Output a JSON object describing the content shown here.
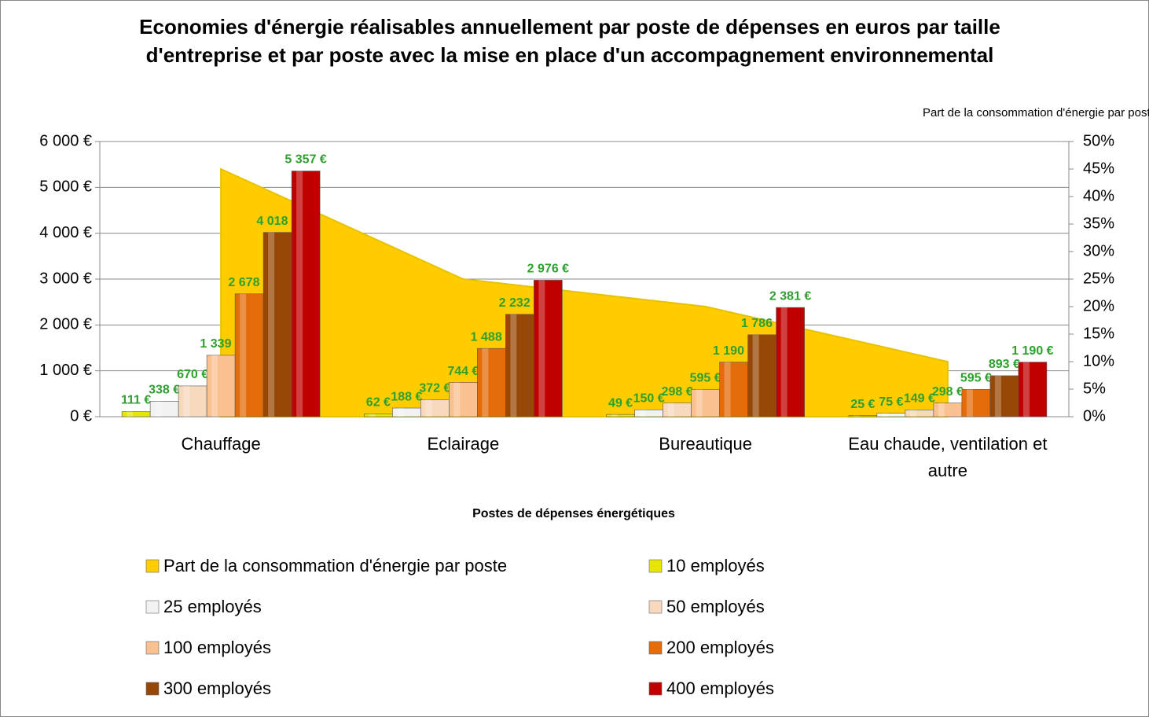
{
  "chart_data": {
    "type": "bar",
    "title": "Economies d'énergie réalisables annuellement par poste de dépenses en euros par taille d'entreprise et par poste avec la mise en place d'un accompagnement environnemental",
    "x_label": "Postes de dépenses énergétiques",
    "y2_label": "Part de la consommation d'énergie par poste",
    "categories": [
      "Chauffage",
      "Eclairage",
      "Bureautique",
      "Eau chaude, ventilation et autre"
    ],
    "ylim": [
      0,
      6000
    ],
    "yticks": [
      {
        "value": 0,
        "label": "0 €"
      },
      {
        "value": 1000,
        "label": "1 000 €"
      },
      {
        "value": 2000,
        "label": "2 000 €"
      },
      {
        "value": 3000,
        "label": "3 000 €"
      },
      {
        "value": 4000,
        "label": "4 000 €"
      },
      {
        "value": 5000,
        "label": "5 000 €"
      },
      {
        "value": 6000,
        "label": "6 000 €"
      }
    ],
    "y2lim": [
      0,
      50
    ],
    "y2ticks": [
      {
        "value": 0,
        "label": "0%"
      },
      {
        "value": 5,
        "label": "5%"
      },
      {
        "value": 10,
        "label": "10%"
      },
      {
        "value": 15,
        "label": "15%"
      },
      {
        "value": 20,
        "label": "20%"
      },
      {
        "value": 25,
        "label": "25%"
      },
      {
        "value": 30,
        "label": "30%"
      },
      {
        "value": 35,
        "label": "35%"
      },
      {
        "value": 40,
        "label": "40%"
      },
      {
        "value": 45,
        "label": "45%"
      },
      {
        "value": 50,
        "label": "50%"
      }
    ],
    "grid": true,
    "legend": "bottom",
    "series": [
      {
        "name": "Part de la consommation d'énergie par poste",
        "type": "area",
        "axis": "y2",
        "color": "#ffcc00",
        "values": [
          45,
          25,
          20,
          10
        ]
      },
      {
        "name": "10 employés",
        "color": "#e6e600",
        "values": [
          111,
          62,
          49,
          25
        ],
        "value_labels": [
          "111 €",
          "62 €",
          "49 €",
          "25 €"
        ]
      },
      {
        "name": "25 employés",
        "color": "#f2f2f2",
        "values": [
          338,
          188,
          150,
          75
        ],
        "value_labels": [
          "338 €",
          "188 €",
          "150 €",
          "75 €"
        ]
      },
      {
        "name": "50 employés",
        "color": "#f7d9bd",
        "values": [
          670,
          372,
          298,
          149
        ],
        "value_labels": [
          "670 €",
          "372 €",
          "298 €",
          "149 €"
        ]
      },
      {
        "name": "100 employés",
        "color": "#fac090",
        "values": [
          1339,
          744,
          595,
          298
        ],
        "value_labels": [
          "1 339 €",
          "744 €",
          "595 €",
          "298 €"
        ]
      },
      {
        "name": "200 employés",
        "color": "#e46c0a",
        "values": [
          2678,
          1488,
          1190,
          595
        ],
        "value_labels": [
          "2 678 €",
          "1 488 €",
          "1 190 €",
          "595 €"
        ]
      },
      {
        "name": "300 employés",
        "color": "#974806",
        "values": [
          4018,
          2232,
          1786,
          893
        ],
        "value_labels": [
          "4 018 €",
          "2 232 €",
          "1 786 €",
          "893 €"
        ]
      },
      {
        "name": "400 employés",
        "color": "#c00000",
        "values": [
          5357,
          2976,
          2381,
          1190
        ],
        "value_labels": [
          "5 357 €",
          "2 976 €",
          "2 381 €",
          "1 190 €"
        ]
      }
    ]
  }
}
